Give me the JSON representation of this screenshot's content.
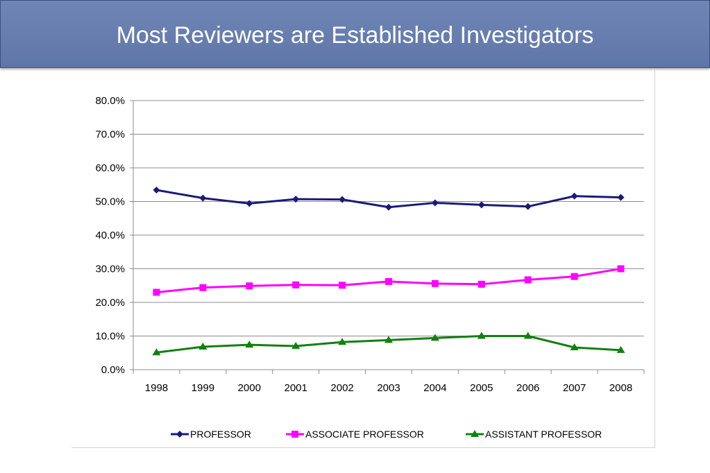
{
  "header": {
    "title": "Most Reviewers are Established Investigators"
  },
  "chart_data": {
    "type": "line",
    "title": "",
    "xlabel": "",
    "ylabel": "",
    "categories": [
      "1998",
      "1999",
      "2000",
      "2001",
      "2002",
      "2003",
      "2004",
      "2005",
      "2006",
      "2007",
      "2008"
    ],
    "y_tick_labels": [
      "0.0%",
      "10.0%",
      "20.0%",
      "30.0%",
      "40.0%",
      "50.0%",
      "60.0%",
      "70.0%",
      "80.0%"
    ],
    "ylim": [
      0,
      80
    ],
    "y_unit": "%",
    "grid": true,
    "legend_position": "bottom",
    "series": [
      {
        "name": "PROFESSOR",
        "color": "#1a1a7a",
        "marker": "diamond",
        "values": [
          53.4,
          51.0,
          49.4,
          50.7,
          50.6,
          48.3,
          49.6,
          49.0,
          48.5,
          51.6,
          51.2
        ]
      },
      {
        "name": "ASSOCIATE PROFESSOR",
        "color": "#ff00ff",
        "marker": "square",
        "values": [
          23.0,
          24.4,
          24.9,
          25.2,
          25.1,
          26.2,
          25.6,
          25.4,
          26.7,
          27.7,
          30.0
        ]
      },
      {
        "name": "ASSISTANT PROFESSOR",
        "color": "#11800f",
        "marker": "triangle",
        "values": [
          5.1,
          6.8,
          7.4,
          7.0,
          8.2,
          8.8,
          9.4,
          10.0,
          10.0,
          6.6,
          5.8
        ]
      }
    ]
  }
}
